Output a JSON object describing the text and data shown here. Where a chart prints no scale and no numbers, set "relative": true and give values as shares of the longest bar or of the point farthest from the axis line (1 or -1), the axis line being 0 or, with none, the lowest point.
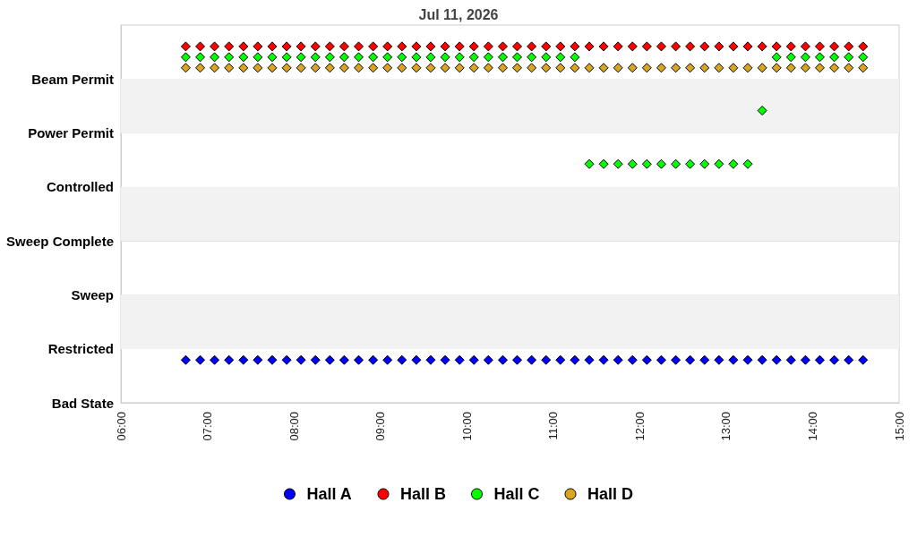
{
  "chart_data": {
    "type": "scatter",
    "title": "Jul 11, 2026",
    "relative": true,
    "x": [
      6.75,
      6.917,
      7.083,
      7.25,
      7.417,
      7.583,
      7.75,
      7.917,
      8.083,
      8.25,
      8.417,
      8.583,
      8.75,
      8.917,
      9.083,
      9.25,
      9.417,
      9.583,
      9.75,
      9.917,
      10.083,
      10.25,
      10.417,
      10.583,
      10.75,
      10.917,
      11.083,
      11.25,
      11.417,
      11.583,
      11.75,
      11.917,
      12.083,
      12.25,
      12.417,
      12.583,
      12.75,
      12.917,
      13.083,
      13.25,
      13.417,
      13.583,
      13.75,
      13.917,
      14.083,
      14.25,
      14.417,
      14.583
    ],
    "y_categories": [
      "Beam Permit",
      "Power Permit",
      "Controlled",
      "Sweep Complete",
      "Sweep",
      "Restricted",
      "Bad State"
    ],
    "series": [
      {
        "name": "Hall A",
        "color": "#0000ff",
        "values": [
          0.12,
          0.12,
          0.12,
          0.12,
          0.12,
          0.12,
          0.12,
          0.12,
          0.12,
          0.12,
          0.12,
          0.12,
          0.12,
          0.12,
          0.12,
          0.12,
          0.12,
          0.12,
          0.12,
          0.12,
          0.12,
          0.12,
          0.12,
          0.12,
          0.12,
          0.12,
          0.12,
          0.12,
          0.12,
          0.12,
          0.12,
          0.12,
          0.12,
          0.12,
          0.12,
          0.12,
          0.12,
          0.12,
          0.12,
          0.12,
          0.12,
          0.12,
          0.12,
          0.12,
          0.12,
          0.12,
          0.12,
          0.12
        ]
      },
      {
        "name": "Hall B",
        "color": "#ff0000",
        "values": [
          1,
          1,
          1,
          1,
          1,
          1,
          1,
          1,
          1,
          1,
          1,
          1,
          1,
          1,
          1,
          1,
          1,
          1,
          1,
          1,
          1,
          1,
          1,
          1,
          1,
          1,
          1,
          1,
          1,
          1,
          1,
          1,
          1,
          1,
          1,
          1,
          1,
          1,
          1,
          1,
          1,
          1,
          1,
          1,
          1,
          1,
          1,
          1
        ]
      },
      {
        "name": "Hall C",
        "color": "#00ff00",
        "values": [
          0.97,
          0.97,
          0.97,
          0.97,
          0.97,
          0.97,
          0.97,
          0.97,
          0.97,
          0.97,
          0.97,
          0.97,
          0.97,
          0.97,
          0.97,
          0.97,
          0.97,
          0.97,
          0.97,
          0.97,
          0.97,
          0.97,
          0.97,
          0.97,
          0.97,
          0.97,
          0.97,
          0.97,
          0.67,
          0.67,
          0.67,
          0.67,
          0.67,
          0.67,
          0.67,
          0.67,
          0.67,
          0.67,
          0.67,
          0.67,
          0.82,
          0.97,
          0.97,
          0.97,
          0.97,
          0.97,
          0.97,
          0.97
        ]
      },
      {
        "name": "Hall D",
        "color": "#daa520",
        "values": [
          0.94,
          0.94,
          0.94,
          0.94,
          0.94,
          0.94,
          0.94,
          0.94,
          0.94,
          0.94,
          0.94,
          0.94,
          0.94,
          0.94,
          0.94,
          0.94,
          0.94,
          0.94,
          0.94,
          0.94,
          0.94,
          0.94,
          0.94,
          0.94,
          0.94,
          0.94,
          0.94,
          0.94,
          0.94,
          0.94,
          0.94,
          0.94,
          0.94,
          0.94,
          0.94,
          0.94,
          0.94,
          0.94,
          0.94,
          0.94,
          0.94,
          0.94,
          0.94,
          0.94,
          0.94,
          0.94,
          0.94,
          0.94
        ]
      }
    ],
    "xlim": [
      6,
      15
    ],
    "xticks": [
      {
        "value": 6,
        "label": "06:00"
      },
      {
        "value": 7,
        "label": "07:00"
      },
      {
        "value": 8,
        "label": "08:00"
      },
      {
        "value": 9,
        "label": "09:00"
      },
      {
        "value": 10,
        "label": "10:00"
      },
      {
        "value": 11,
        "label": "11:00"
      },
      {
        "value": 12,
        "label": "12:00"
      },
      {
        "value": 13,
        "label": "13:00"
      },
      {
        "value": 14,
        "label": "14:00"
      },
      {
        "value": 15,
        "label": "15:00"
      }
    ],
    "bands": [
      {
        "axis": "y",
        "from": 0.151,
        "to": 0.303,
        "color": "#f2f2f2"
      },
      {
        "axis": "y",
        "from": 0.454,
        "to": 0.606,
        "color": "#f2f2f2"
      },
      {
        "axis": "y",
        "from": 0.757,
        "to": 0.909,
        "color": "#f2f2f2"
      }
    ],
    "grid": "y",
    "legend": "bottom",
    "marker": "diamond"
  }
}
